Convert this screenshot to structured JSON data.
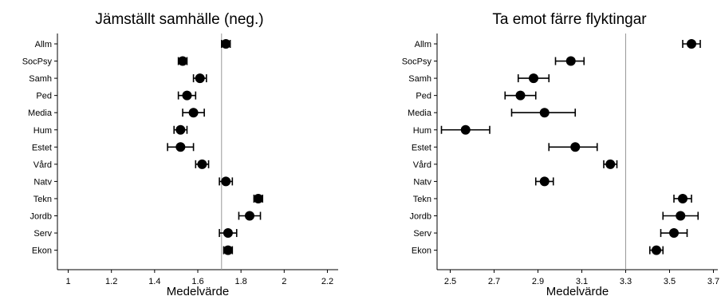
{
  "chart_data": [
    {
      "type": "scatter",
      "title": "Jämställt samhälle (neg.)",
      "xlabel": "Medelvärde",
      "ylabel": "",
      "xlim": [
        0.95,
        2.25
      ],
      "xticks": [
        "1",
        "1.2",
        "1.4",
        "1.6",
        "1.8",
        "2",
        "2.2"
      ],
      "reference_line": 1.71,
      "categories": [
        "Allm",
        "SocPsy",
        "Samh",
        "Ped",
        "Media",
        "Hum",
        "Estet",
        "Vård",
        "Natv",
        "Tekn",
        "Jordb",
        "Serv",
        "Ekon"
      ],
      "values": [
        1.73,
        1.53,
        1.61,
        1.55,
        1.58,
        1.52,
        1.52,
        1.62,
        1.73,
        1.88,
        1.84,
        1.74,
        1.74
      ],
      "lower": [
        1.71,
        1.51,
        1.58,
        1.51,
        1.53,
        1.49,
        1.46,
        1.59,
        1.7,
        1.86,
        1.79,
        1.7,
        1.72
      ],
      "upper": [
        1.75,
        1.55,
        1.64,
        1.59,
        1.63,
        1.55,
        1.58,
        1.65,
        1.76,
        1.9,
        1.89,
        1.78,
        1.76
      ]
    },
    {
      "type": "scatter",
      "title": "Ta emot färre flyktingar",
      "xlabel": "Medelvärde",
      "ylabel": "",
      "xlim": [
        2.44,
        3.72
      ],
      "xticks": [
        "2.5",
        "2.7",
        "2.9",
        "3.1",
        "3.3",
        "3.5",
        "3.7"
      ],
      "reference_line": 3.3,
      "categories": [
        "Allm",
        "SocPsy",
        "Samh",
        "Ped",
        "Media",
        "Hum",
        "Estet",
        "Vård",
        "Natv",
        "Tekn",
        "Jordb",
        "Serv",
        "Ekon"
      ],
      "values": [
        3.6,
        3.05,
        2.88,
        2.82,
        2.93,
        2.57,
        3.07,
        3.23,
        2.93,
        3.56,
        3.55,
        3.52,
        3.44
      ],
      "lower": [
        3.56,
        2.98,
        2.81,
        2.75,
        2.78,
        2.46,
        2.95,
        3.2,
        2.89,
        3.52,
        3.47,
        3.46,
        3.41
      ],
      "upper": [
        3.64,
        3.11,
        2.95,
        2.89,
        3.07,
        2.68,
        3.17,
        3.26,
        2.97,
        3.6,
        3.63,
        3.58,
        3.47
      ]
    }
  ]
}
